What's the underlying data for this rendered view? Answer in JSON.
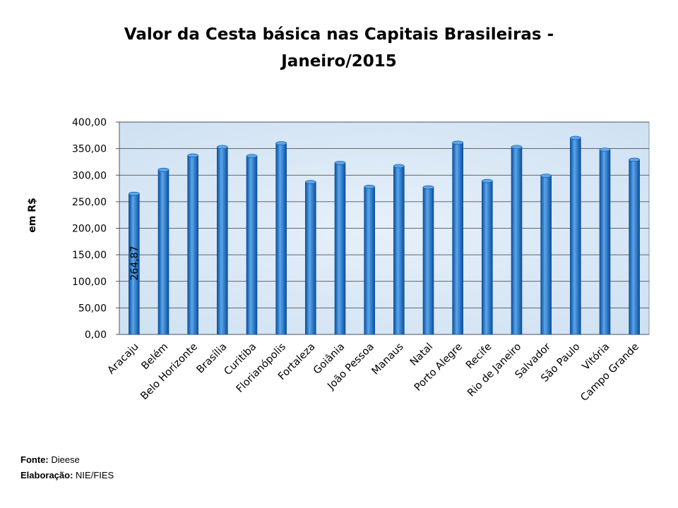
{
  "chart_data": {
    "type": "bar",
    "title_lines": [
      "Valor da Cesta básica nas Capitais Brasileiras -",
      "Janeiro/2015"
    ],
    "xlabel": "",
    "ylabel": "em R$",
    "ylim": [
      0,
      400
    ],
    "ytick_labels": [
      "0,00",
      "50,00",
      "100,00",
      "150,00",
      "200,00",
      "250,00",
      "300,00",
      "350,00",
      "400,00"
    ],
    "grid": true,
    "legend": "none",
    "categories": [
      "Aracaju",
      "Belém",
      "Belo Horizonte",
      "Brasília",
      "Curitiba",
      "Florianópolis",
      "Fortaleza",
      "Goiânia",
      "João Pessoa",
      "Manaus",
      "Natal",
      "Porto Alegre",
      "Recife",
      "Rio de Janeiro",
      "Salvador",
      "São Paulo",
      "Vitória",
      "Campo Grande"
    ],
    "values": [
      264.87,
      310,
      337,
      353,
      336,
      360,
      287,
      323,
      278,
      317,
      277,
      361,
      289,
      353,
      299,
      370,
      348,
      329
    ],
    "data_labels": [
      {
        "index": 0,
        "text": "264,87"
      }
    ],
    "colors": {
      "bar": "#1f6fc4",
      "bar_light": "#5aa6ec",
      "bar_dark": "#0b4f9c",
      "plot_bg": "#dceaf6",
      "grid": "#3a3a3a"
    }
  },
  "footer": {
    "source_label": "Fonte:",
    "source_value": " Dieese",
    "credit_label": "Elaboração:",
    "credit_value": " NIE/FIES"
  }
}
